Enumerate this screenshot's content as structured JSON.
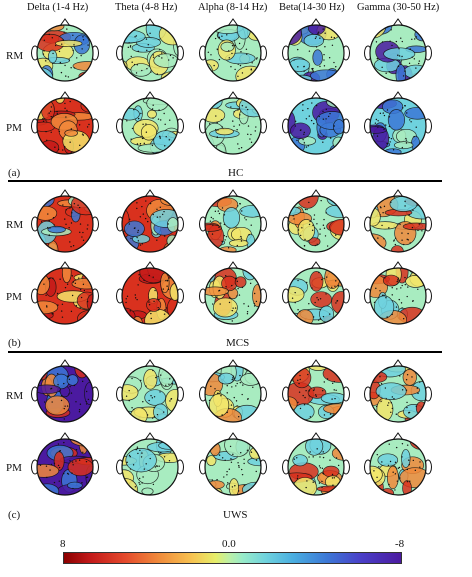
{
  "bands": [
    "Delta (1-4 Hz)",
    "Theta (4-8 Hz)",
    "Alpha (8-14 Hz)",
    "Beta(14-30 Hz)",
    "Gamma (30-50 Hz)"
  ],
  "row_labels": [
    "RM",
    "PM"
  ],
  "panels": [
    {
      "letter": "(a)",
      "group": "HC",
      "rows": [
        [
          "mixed",
          "neutral",
          "neutral",
          "neutral-blue",
          "neutral-blue"
        ],
        [
          "red",
          "neutral",
          "neutral",
          "blue",
          "blue"
        ]
      ]
    },
    {
      "letter": "(b)",
      "group": "MCS",
      "rows": [
        [
          "red-mixed",
          "red-mixed",
          "neutral-red",
          "neutral-red",
          "neutral-red"
        ],
        [
          "red",
          "red",
          "neutral-red",
          "neutral-red",
          "neutral-red"
        ]
      ]
    },
    {
      "letter": "(c)",
      "group": "UWS",
      "rows": [
        [
          "purple-red",
          "neutral",
          "neutral-yellow",
          "neutral-red",
          "neutral-red"
        ],
        [
          "purple-red",
          "neutral",
          "neutral-yellow",
          "neutral-red",
          "neutral-red"
        ]
      ]
    }
  ],
  "colorbar": {
    "max_label": "8",
    "mid_label": "0.0",
    "min_label": "-8"
  },
  "colors": {
    "red": "#d9311e",
    "orange": "#f08a3b",
    "yellow": "#f2e66a",
    "green": "#a8ecc0",
    "cyan": "#6fd2de",
    "blue": "#3c78d6",
    "purple": "#4b1aa0",
    "neutral": "#8fe6c6"
  }
}
